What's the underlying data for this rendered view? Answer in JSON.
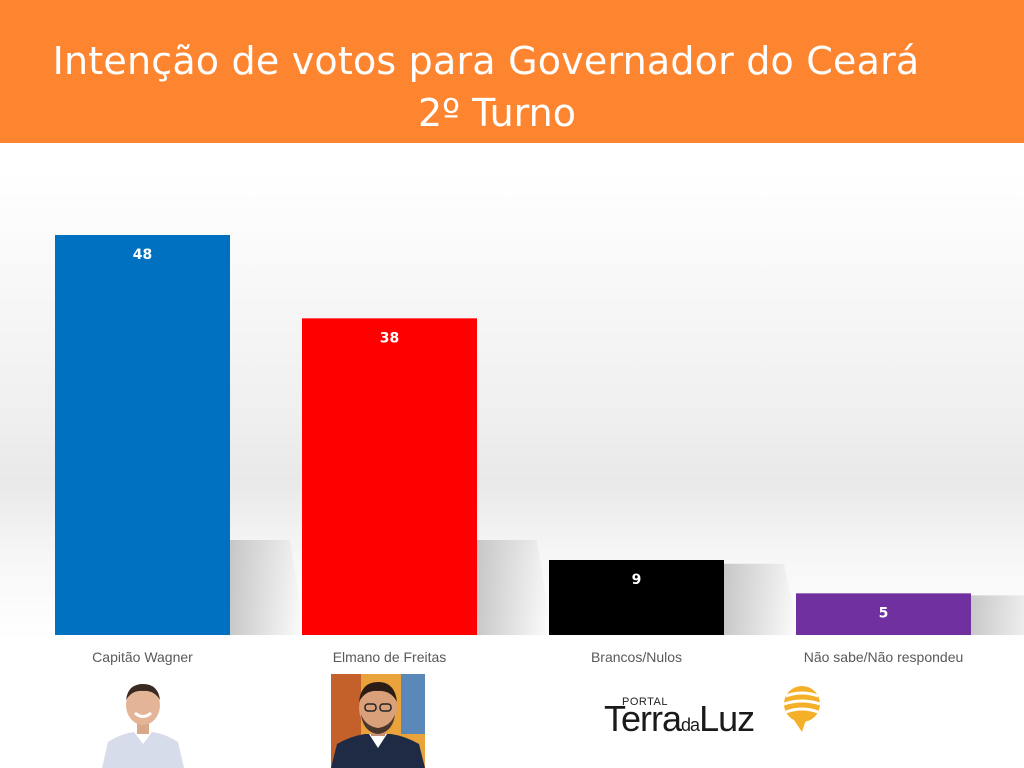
{
  "header": {
    "title": "Intenção de votos para Governador do Ceará",
    "subtitle": "2º Turno"
  },
  "colors": {
    "header_bg": "#fe8530",
    "header_text": "#ffffff"
  },
  "chart_data": {
    "type": "bar",
    "title": "Intenção de votos para Governador do Ceará",
    "subtitle": "2º Turno",
    "categories": [
      "Capitão Wagner",
      "Elmano de Freitas",
      "Brancos/Nulos",
      "Não sabe/Não respondeu"
    ],
    "values": [
      48,
      38,
      9,
      5
    ],
    "colors": [
      "#0070c0",
      "#ff0000",
      "#000000",
      "#7030a0"
    ],
    "ylim": [
      0,
      48
    ],
    "data_labels": true,
    "grid": false,
    "legend": "none"
  },
  "footer": {
    "logo": {
      "portal": "PORTAL",
      "name_part1": "Terra",
      "name_part2": "da",
      "name_part3": "Luz"
    },
    "photos": [
      {
        "icon": "candidate-photo-icon",
        "label": "Capitão Wagner"
      },
      {
        "icon": "candidate-photo-icon",
        "label": "Elmano de Freitas"
      }
    ]
  }
}
